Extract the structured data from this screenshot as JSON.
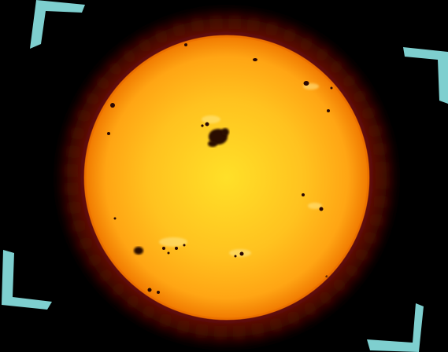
{
  "image": {
    "subject": "sun-with-sunspots",
    "colors": {
      "background": "#000000",
      "sun_center": "#ffe028",
      "sun_mid": "#ffb11a",
      "sun_edge": "#f07800",
      "corona": "#6e1208",
      "sunspot": "#2a0804",
      "corner_bracket": "#7ecfcf",
      "page_background": "#ffffff"
    }
  },
  "icons": {
    "corner_top_left": "corner-bracket-icon",
    "corner_top_right": "corner-bracket-icon",
    "corner_bottom_left": "corner-bracket-icon",
    "corner_bottom_right": "corner-bracket-icon"
  }
}
